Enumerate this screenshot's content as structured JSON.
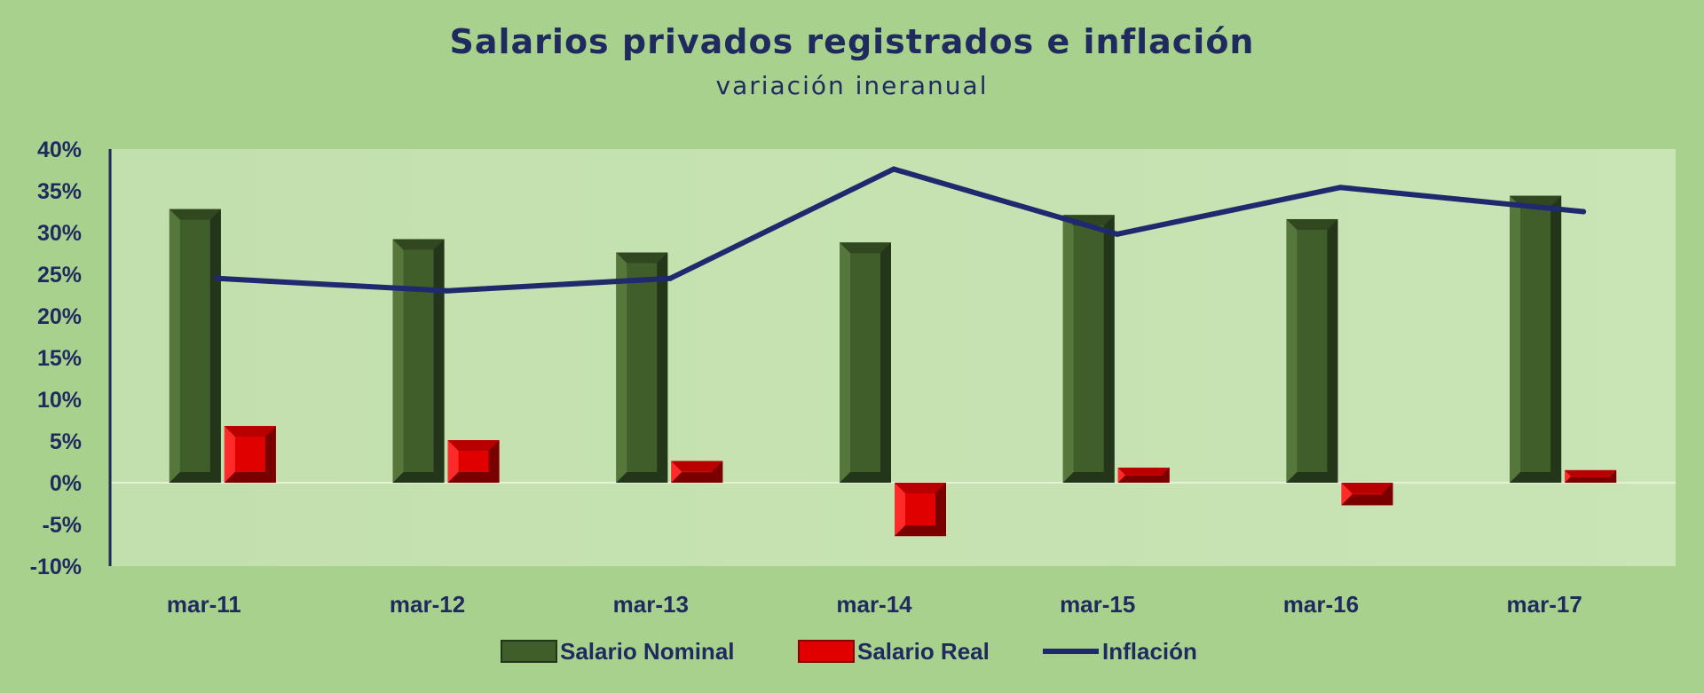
{
  "chart_data": {
    "type": "bar",
    "title": "Salarios privados registrados e inflación",
    "subtitle": "variación ineranual",
    "categories": [
      "mar-11",
      "mar-12",
      "mar-13",
      "mar-14",
      "mar-15",
      "mar-16",
      "mar-17"
    ],
    "series": [
      {
        "name": "Salario Nominal",
        "kind": "bar",
        "color": "#3f5e2a",
        "values": [
          32.8,
          29.2,
          27.6,
          28.8,
          32.1,
          31.6,
          34.4
        ]
      },
      {
        "name": "Salario Real",
        "kind": "bar",
        "color": "#e00000",
        "values": [
          6.8,
          5.1,
          2.6,
          -6.4,
          1.8,
          -2.7,
          1.5
        ]
      },
      {
        "name": "Inflación",
        "kind": "line",
        "color": "#1f2a6e",
        "values": [
          24.5,
          23.0,
          24.5,
          37.6,
          29.8,
          35.4,
          32.5
        ]
      }
    ],
    "yticks": [
      "40%",
      "35%",
      "30%",
      "25%",
      "20%",
      "15%",
      "10%",
      "5%",
      "0%",
      "-5%",
      "-10%"
    ],
    "ylim": [
      -10,
      40
    ],
    "legend": "bottom",
    "grid": false
  }
}
